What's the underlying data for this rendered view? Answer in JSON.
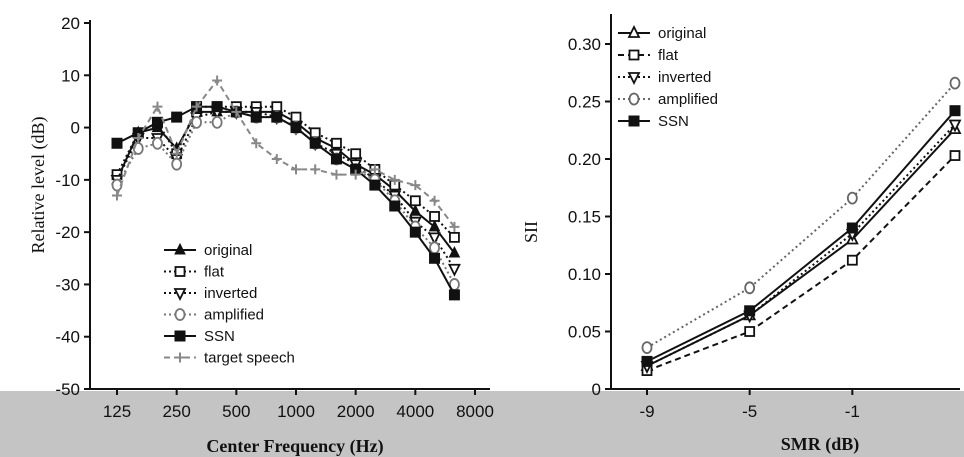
{
  "chart_data": [
    {
      "type": "line",
      "xlabel": "Center Frequency (Hz)",
      "ylabel": "Relative level (dB)",
      "x": [
        125,
        160,
        200,
        250,
        315,
        400,
        500,
        630,
        800,
        1000,
        1250,
        1600,
        2000,
        2500,
        3150,
        4000,
        5000,
        6300
      ],
      "xticks": [
        "125",
        "250",
        "500",
        "1000",
        "2000",
        "4000",
        "8000"
      ],
      "xtick_values": [
        125,
        250,
        500,
        1000,
        2000,
        4000,
        8000
      ],
      "yticks": [
        "20",
        "10",
        "0",
        "-10",
        "-20",
        "-30",
        "-40",
        "-50"
      ],
      "ylim": [
        -50,
        20
      ],
      "xscale": "log",
      "legend_position": "lower-left",
      "series": [
        {
          "name": "original",
          "marker": "triangle-up",
          "dash": "solid",
          "color": "#111111",
          "values": [
            -10,
            -1,
            0,
            -4,
            3,
            3,
            3,
            3,
            3,
            1,
            -2,
            -4,
            -7,
            -9,
            -12,
            -16,
            -19,
            -24
          ]
        },
        {
          "name": "flat",
          "marker": "square-open",
          "dash": "dotted",
          "color": "#111111",
          "values": [
            -9,
            -1,
            1,
            -5,
            4,
            4,
            4,
            4,
            4,
            2,
            -1,
            -3,
            -5,
            -8,
            -11,
            -14,
            -17,
            -21
          ]
        },
        {
          "name": "inverted",
          "marker": "triangle-down",
          "dash": "dotted",
          "color": "#111111",
          "values": [
            -10,
            -2,
            -2,
            -6,
            2,
            3,
            3,
            3,
            2,
            0,
            -3,
            -5,
            -7,
            -10,
            -13,
            -18,
            -21,
            -27
          ]
        },
        {
          "name": "amplified",
          "marker": "circle-open",
          "dash": "dotted",
          "color": "#777777",
          "values": [
            -11,
            -4,
            -3,
            -7,
            1,
            1,
            3,
            2,
            2,
            0,
            -3,
            -6,
            -8,
            -10,
            -14,
            -19,
            -23,
            -30
          ]
        },
        {
          "name": "SSN",
          "marker": "square-filled",
          "dash": "solid",
          "color": "#111111",
          "values": [
            -3,
            -1,
            1,
            2,
            4,
            4,
            3,
            2,
            2,
            0,
            -3,
            -6,
            -8,
            -11,
            -15,
            -20,
            -25,
            -32
          ]
        },
        {
          "name": "target speech",
          "marker": "plus",
          "dash": "dashed",
          "color": "#888888",
          "values": [
            -13,
            -2,
            4,
            -5,
            4,
            9,
            3,
            -3,
            -6,
            -8,
            -8,
            -9,
            -9,
            -8,
            -10,
            -11,
            -14,
            -19
          ]
        }
      ]
    },
    {
      "type": "line",
      "xlabel": "SMR (dB)",
      "ylabel": "SII",
      "x": [
        -9,
        -5,
        -1,
        3
      ],
      "xticks": [
        "-9",
        "-5",
        "-1"
      ],
      "xtick_values": [
        -9,
        -5,
        -1
      ],
      "yticks": [
        "0",
        "0.05",
        "0.10",
        "0.15",
        "0.20",
        "0.25",
        "0.30"
      ],
      "ylim": [
        0,
        0.3
      ],
      "legend_position": "upper-left",
      "series": [
        {
          "name": "original",
          "marker": "triangle-open",
          "dash": "solid",
          "color": "#111111",
          "values": [
            0.02,
            0.064,
            0.13,
            0.226
          ]
        },
        {
          "name": "flat",
          "marker": "square-open",
          "dash": "dashed",
          "color": "#111111",
          "values": [
            0.016,
            0.05,
            0.112,
            0.203
          ]
        },
        {
          "name": "inverted",
          "marker": "triangle-down",
          "dash": "dotted",
          "color": "#111111",
          "values": [
            0.02,
            0.064,
            0.135,
            0.23
          ]
        },
        {
          "name": "amplified",
          "marker": "circle-open",
          "dash": "dotted",
          "color": "#666666",
          "values": [
            0.036,
            0.088,
            0.166,
            0.266
          ]
        },
        {
          "name": "SSN",
          "marker": "square-filled",
          "dash": "solid",
          "color": "#111111",
          "values": [
            0.024,
            0.068,
            0.14,
            0.242
          ]
        }
      ]
    }
  ]
}
